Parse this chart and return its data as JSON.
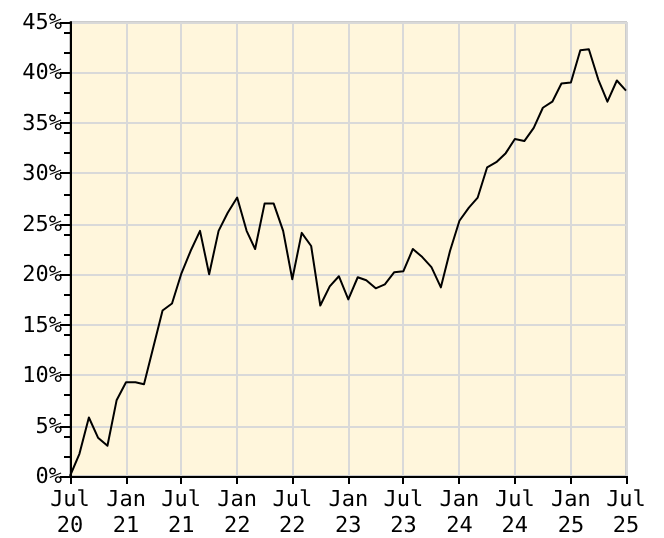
{
  "chart_data": {
    "type": "line",
    "x": [
      "2020-07",
      "2020-08",
      "2020-09",
      "2020-10",
      "2020-11",
      "2020-12",
      "2021-01",
      "2021-02",
      "2021-03",
      "2021-04",
      "2021-05",
      "2021-06",
      "2021-07",
      "2021-08",
      "2021-09",
      "2021-10",
      "2021-11",
      "2021-12",
      "2022-01",
      "2022-02",
      "2022-03",
      "2022-04",
      "2022-05",
      "2022-06",
      "2022-07",
      "2022-08",
      "2022-09",
      "2022-10",
      "2022-11",
      "2022-12",
      "2023-01",
      "2023-02",
      "2023-03",
      "2023-04",
      "2023-05",
      "2023-06",
      "2023-07",
      "2023-08",
      "2023-09",
      "2023-10",
      "2023-11",
      "2023-12",
      "2024-01",
      "2024-02",
      "2024-03",
      "2024-04",
      "2024-05",
      "2024-06",
      "2024-07",
      "2024-08",
      "2024-09",
      "2024-10",
      "2024-11",
      "2024-12",
      "2025-01",
      "2025-02",
      "2025-03",
      "2025-04",
      "2025-05",
      "2025-06",
      "2025-07"
    ],
    "series": [
      {
        "color": "#000000",
        "values": [
          0,
          2.2,
          5.8,
          3.8,
          3.0,
          7.5,
          9.3,
          9.3,
          9.1,
          12.8,
          16.4,
          17.1,
          20.0,
          22.3,
          24.3,
          20.0,
          24.3,
          26.1,
          27.6,
          24.3,
          22.5,
          27.0,
          27.0,
          24.3,
          19.5,
          24.1,
          22.8,
          16.9,
          18.8,
          19.8,
          17.5,
          19.7,
          19.4,
          18.6,
          19.0,
          20.2,
          20.3,
          22.5,
          21.7,
          20.7,
          18.7,
          22.3,
          25.3,
          26.6,
          27.6,
          30.6,
          31.1,
          32.0,
          33.4,
          33.2,
          34.5,
          36.5,
          37.1,
          38.9,
          39.0,
          42.2,
          42.3,
          39.3,
          37.1,
          39.2,
          38.2
        ]
      }
    ],
    "xlim": [
      "2020-07",
      "2025-07"
    ],
    "xticks": [
      {
        "value": "2020-07",
        "label": "Jul 20"
      },
      {
        "value": "2021-01",
        "label": "Jan 21"
      },
      {
        "value": "2021-07",
        "label": "Jul 21"
      },
      {
        "value": "2022-01",
        "label": "Jan 22"
      },
      {
        "value": "2022-07",
        "label": "Jul 22"
      },
      {
        "value": "2023-01",
        "label": "Jan 23"
      },
      {
        "value": "2023-07",
        "label": "Jul 23"
      },
      {
        "value": "2024-01",
        "label": "Jan 24"
      },
      {
        "value": "2024-07",
        "label": "Jul 24"
      },
      {
        "value": "2025-01",
        "label": "Jan 25"
      },
      {
        "value": "2025-07",
        "label": "Jul 25"
      }
    ],
    "ylim": [
      0,
      45
    ],
    "yticks": [
      {
        "value": 0,
        "label": "0%"
      },
      {
        "value": 5,
        "label": "5%"
      },
      {
        "value": 10,
        "label": "10%"
      },
      {
        "value": 15,
        "label": "15%"
      },
      {
        "value": 20,
        "label": "20%"
      },
      {
        "value": 25,
        "label": "25%"
      },
      {
        "value": 30,
        "label": "30%"
      },
      {
        "value": 35,
        "label": "35%"
      },
      {
        "value": 40,
        "label": "40%"
      },
      {
        "value": 45,
        "label": "45%"
      }
    ],
    "grid": true,
    "marker": "none",
    "line_style": "solid"
  }
}
